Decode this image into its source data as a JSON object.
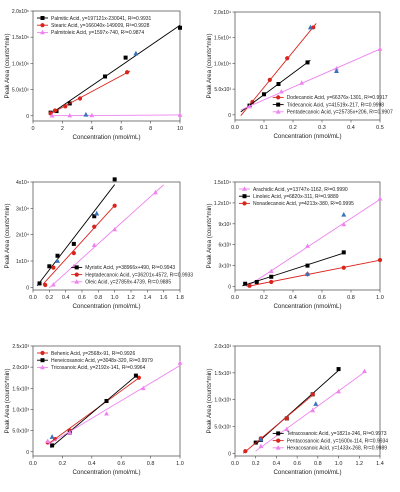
{
  "colors": {
    "black": "#000000",
    "red": "#d9231c",
    "violet": "#ee82ee",
    "blue": "#3b73b9"
  },
  "chart_data": [
    {
      "type": "scatter",
      "xlabel": "Concentration (nmol/mL)",
      "ylabel": "Peak Area (counts*min)",
      "xlim": [
        0,
        10
      ],
      "xticks": [
        0,
        2,
        4,
        6,
        8,
        10
      ],
      "xtick_labels": [
        "0",
        "2",
        "4",
        "6",
        "8",
        "10"
      ],
      "ylim": [
        -100000,
        2000000
      ],
      "yticks": [
        0,
        500000,
        1000000,
        1500000,
        2000000
      ],
      "ytick_labels": [
        "0",
        "5.0x10⁵",
        "1.0x10⁶",
        "1.5x10⁶",
        "2.0x10⁶"
      ],
      "legend_position": "top-left",
      "series": [
        {
          "name": "Palmitic Acid, y=197121x-230041, R²=0.9931",
          "color": "black",
          "marker": "square",
          "line": [
            1.2,
            10
          ],
          "x": [
            1.2,
            1.6,
            2.5,
            4.9,
            6.3,
            10
          ],
          "y": [
            60000,
            90000,
            235000,
            750000,
            1110000,
            1680000
          ]
        },
        {
          "name": "Stearic Acid, y=166040x-149009, R²=0.9928",
          "color": "red",
          "marker": "circle",
          "line": [
            1.2,
            6.6
          ],
          "x": [
            1.2,
            1.5,
            2.2,
            3.2,
            6.4
          ],
          "y": [
            45000,
            100000,
            180000,
            330000,
            830000
          ]
        },
        {
          "name": "Palmitoleic Acid, y=1597x-740, R²=0.9874",
          "color": "violet",
          "marker": "triangle",
          "line": [
            1.2,
            10
          ],
          "x": [
            1.3,
            2.5,
            4.0,
            10
          ],
          "y": [
            2000,
            3000,
            5000,
            15000
          ]
        }
      ],
      "highlights": [
        {
          "x": 7.0,
          "y": 1190000
        },
        {
          "x": 3.6,
          "y": 20000
        }
      ]
    },
    {
      "type": "scatter",
      "xlabel": "Concentration (nmol/mL)",
      "ylabel": "Peak Area (counts*min)",
      "xlim": [
        0,
        0.5
      ],
      "xticks": [
        0,
        0.1,
        0.2,
        0.3,
        0.4,
        0.5
      ],
      "xtick_labels": [
        "0.0",
        "0.1",
        "0.2",
        "0.3",
        "0.4",
        "0.5"
      ],
      "ylim": [
        -1000,
        20000
      ],
      "yticks": [
        0,
        5000,
        10000,
        15000,
        20000
      ],
      "ytick_labels": [
        "0",
        "5.0x10³",
        "1.0x10⁴",
        "1.5x10⁴",
        "2.0x10⁴"
      ],
      "legend_position": "bottom-right",
      "series": [
        {
          "name": "Dodecanoic Acid, y=66376x-1301, R²=0.9917",
          "color": "red",
          "marker": "circle",
          "line": [
            0.02,
            0.28
          ],
          "x": [
            0.06,
            0.12,
            0.18,
            0.27
          ],
          "y": [
            2500,
            6800,
            11000,
            17000
          ]
        },
        {
          "name": "Tridecanoic Acid, y=41519x-217, R²=0.9998",
          "color": "black",
          "marker": "square",
          "line": [
            0.02,
            0.26
          ],
          "x": [
            0.05,
            0.1,
            0.15,
            0.25
          ],
          "y": [
            1800,
            4000,
            6000,
            10200
          ]
        },
        {
          "name": "Pentadecanoic Acid, y=25735x+206, R²=0.9907",
          "color": "violet",
          "marker": "triangle",
          "line": [
            0.02,
            0.5
          ],
          "x": [
            0.05,
            0.16,
            0.23,
            0.35,
            0.5
          ],
          "y": [
            1600,
            4500,
            6200,
            9000,
            12800
          ]
        }
      ],
      "highlights": [
        {
          "x": 0.26,
          "y": 17000
        },
        {
          "x": 0.35,
          "y": 8500
        }
      ]
    },
    {
      "type": "scatter",
      "xlabel": "Concentration (nmol/mL)",
      "ylabel": "Peak Area (counts*min)",
      "xlim": [
        0,
        1.8
      ],
      "xticks": [
        0,
        0.2,
        0.4,
        0.6,
        0.8,
        1.0,
        1.2,
        1.4,
        1.6,
        1.8
      ],
      "xtick_labels": [
        "0.0",
        "0.2",
        "0.4",
        "0.6",
        "0.8",
        "1.0",
        "1.2",
        "1.4",
        "1.6",
        "1.8"
      ],
      "ylim": [
        -1000,
        40000
      ],
      "yticks": [
        0,
        10000,
        20000,
        30000,
        40000
      ],
      "ytick_labels": [
        "0",
        "1x10⁴",
        "2x10⁴",
        "3x10⁴",
        "4x10⁴"
      ],
      "legend_position": "bottom-right",
      "series": [
        {
          "name": "Myristic Acid, y=38966x+490, R²=0.9943",
          "color": "black",
          "marker": "square",
          "line": [
            0.05,
            1.0
          ],
          "x": [
            0.08,
            0.2,
            0.3,
            0.5,
            0.75,
            1.0
          ],
          "y": [
            1500,
            8000,
            12000,
            16500,
            27000,
            41000
          ]
        },
        {
          "name": "Heptadecanoic Acid, y=36201x-4572, R²=0.9933",
          "color": "red",
          "marker": "circle",
          "line": [
            0.12,
            1.0
          ],
          "x": [
            0.15,
            0.25,
            0.5,
            0.75,
            1.0
          ],
          "y": [
            900,
            7500,
            13000,
            23000,
            31000
          ]
        },
        {
          "name": "Oleic Acid, y=27859x-4739, R²=0.9885",
          "color": "violet",
          "marker": "triangle",
          "line": [
            0.2,
            1.6
          ],
          "x": [
            0.25,
            0.5,
            0.75,
            1.0,
            1.5
          ],
          "y": [
            1000,
            8000,
            16000,
            22000,
            36000
          ]
        }
      ],
      "highlights": [
        {
          "x": 0.78,
          "y": 28000
        },
        {
          "x": 0.3,
          "y": 10000
        }
      ]
    },
    {
      "type": "scatter",
      "xlabel": "Concentration (nmol/mL)",
      "ylabel": "Peak Area (counts*min)",
      "xlim": [
        0,
        1.0
      ],
      "xticks": [
        0,
        0.2,
        0.4,
        0.6,
        0.8,
        1.0
      ],
      "xtick_labels": [
        "0.0",
        "0.2",
        "0.4",
        "0.6",
        "0.8",
        "1.0"
      ],
      "ylim": [
        -500,
        15000
      ],
      "yticks": [
        0,
        3000,
        6000,
        9000,
        12000,
        15000
      ],
      "ytick_labels": [
        "0",
        "3x10³",
        "6x10³",
        "9x10³",
        "1.2x10⁴",
        "1.5x10⁴"
      ],
      "legend_position": "top-left",
      "series": [
        {
          "name": "Arachidic Acid, y=13747x-1162, R²=0.9990",
          "color": "violet",
          "marker": "triangle",
          "line": [
            0.08,
            1.0
          ],
          "x": [
            0.1,
            0.25,
            0.5,
            0.75,
            1.0
          ],
          "y": [
            250,
            2200,
            5800,
            8900,
            12600
          ]
        },
        {
          "name": "Linoleic Acid, y=6820x-311, R²=0.9889",
          "color": "black",
          "marker": "square",
          "line": [
            0.05,
            0.76
          ],
          "x": [
            0.07,
            0.15,
            0.25,
            0.5,
            0.75
          ],
          "y": [
            400,
            650,
            1400,
            3000,
            4900
          ]
        },
        {
          "name": "Nonadecanoic Acid, y=4213x-380, R²=0.9995",
          "color": "red",
          "marker": "circle",
          "line": [
            0.1,
            1.0
          ],
          "x": [
            0.1,
            0.25,
            0.5,
            0.75,
            1.0
          ],
          "y": [
            100,
            650,
            1750,
            2700,
            3800
          ]
        }
      ],
      "highlights": [
        {
          "x": 0.75,
          "y": 10300
        },
        {
          "x": 0.5,
          "y": 1800
        }
      ]
    },
    {
      "type": "scatter",
      "xlabel": "Concentration (nmol/mL)",
      "ylabel": "Peak Area (counts*min)",
      "xlim": [
        0,
        1.0
      ],
      "xticks": [
        0,
        0.2,
        0.4,
        0.6,
        0.8,
        1.0
      ],
      "xtick_labels": [
        "0.0",
        "0.2",
        "0.4",
        "0.6",
        "0.8",
        "1.0"
      ],
      "ylim": [
        -100,
        2500
      ],
      "yticks": [
        0,
        500,
        1000,
        1500,
        2000,
        2500
      ],
      "ytick_labels": [
        "0",
        "5.0x10²",
        "1.0x10³",
        "1.5x10³",
        "2.0x10³",
        "2.5x10³"
      ],
      "legend_position": "top-left",
      "series": [
        {
          "name": "Behenic Acid, y=2568x-91, R²=0.9926",
          "color": "red",
          "marker": "circle",
          "line": [
            0.1,
            0.72
          ],
          "x": [
            0.1,
            0.15,
            0.25,
            0.5,
            0.72
          ],
          "y": [
            220,
            300,
            500,
            1200,
            1750
          ]
        },
        {
          "name": "Heneicosanoic Acid, y=3048x-320, R²=0.9979",
          "color": "black",
          "marker": "square",
          "line": [
            0.12,
            0.7
          ],
          "x": [
            0.13,
            0.25,
            0.5,
            0.7
          ],
          "y": [
            150,
            450,
            1200,
            1800
          ]
        },
        {
          "name": "Tricosanoic Acid, y=2192x-141, R²=0.9964",
          "color": "violet",
          "marker": "triangle",
          "line": [
            0.1,
            1.0
          ],
          "x": [
            0.1,
            0.25,
            0.5,
            0.75,
            1.0
          ],
          "y": [
            250,
            450,
            900,
            1500,
            2100
          ]
        }
      ],
      "highlights": [
        {
          "x": 0.13,
          "y": 350
        }
      ]
    },
    {
      "type": "scatter",
      "xlabel": "Concentration (nmol/mL)",
      "ylabel": "Peak Area (counts*min)",
      "xlim": [
        0,
        1.4
      ],
      "xticks": [
        0,
        0.2,
        0.4,
        0.6,
        0.8,
        1.0,
        1.2,
        1.4
      ],
      "xtick_labels": [
        "0.0",
        "0.2",
        "0.4",
        "0.6",
        "0.8",
        "1.0",
        "1.2",
        "1.4"
      ],
      "ylim": [
        -50,
        2000
      ],
      "yticks": [
        0,
        500,
        1000,
        1500,
        2000
      ],
      "ytick_labels": [
        "0",
        "5.0x10²",
        "1.0x10³",
        "1.5x10³",
        "2.0x10³"
      ],
      "legend_position": "bottom-right",
      "series": [
        {
          "name": "Tetracosanoic Acid, y=1821x-246, R²=0.9973",
          "color": "black",
          "marker": "square",
          "line": [
            0.2,
            1.0
          ],
          "x": [
            0.2,
            0.25,
            0.5,
            0.75,
            1.0
          ],
          "y": [
            200,
            250,
            650,
            1100,
            1570
          ]
        },
        {
          "name": "Pentacosanoic Acid, y=1600x-114, R²=0.9934",
          "color": "red",
          "marker": "circle",
          "line": [
            0.08,
            0.75
          ],
          "x": [
            0.1,
            0.25,
            0.5,
            0.75
          ],
          "y": [
            40,
            280,
            650,
            1100
          ]
        },
        {
          "name": "Hexacosanoic Acid, y=1433x-268, R²=0.9989",
          "color": "violet",
          "marker": "triangle",
          "line": [
            0.2,
            1.25
          ],
          "x": [
            0.25,
            0.5,
            0.75,
            1.0,
            1.25
          ],
          "y": [
            130,
            450,
            800,
            1150,
            1530
          ]
        }
      ],
      "highlights": [
        {
          "x": 0.78,
          "y": 920
        },
        {
          "x": 0.25,
          "y": 260
        }
      ]
    }
  ]
}
